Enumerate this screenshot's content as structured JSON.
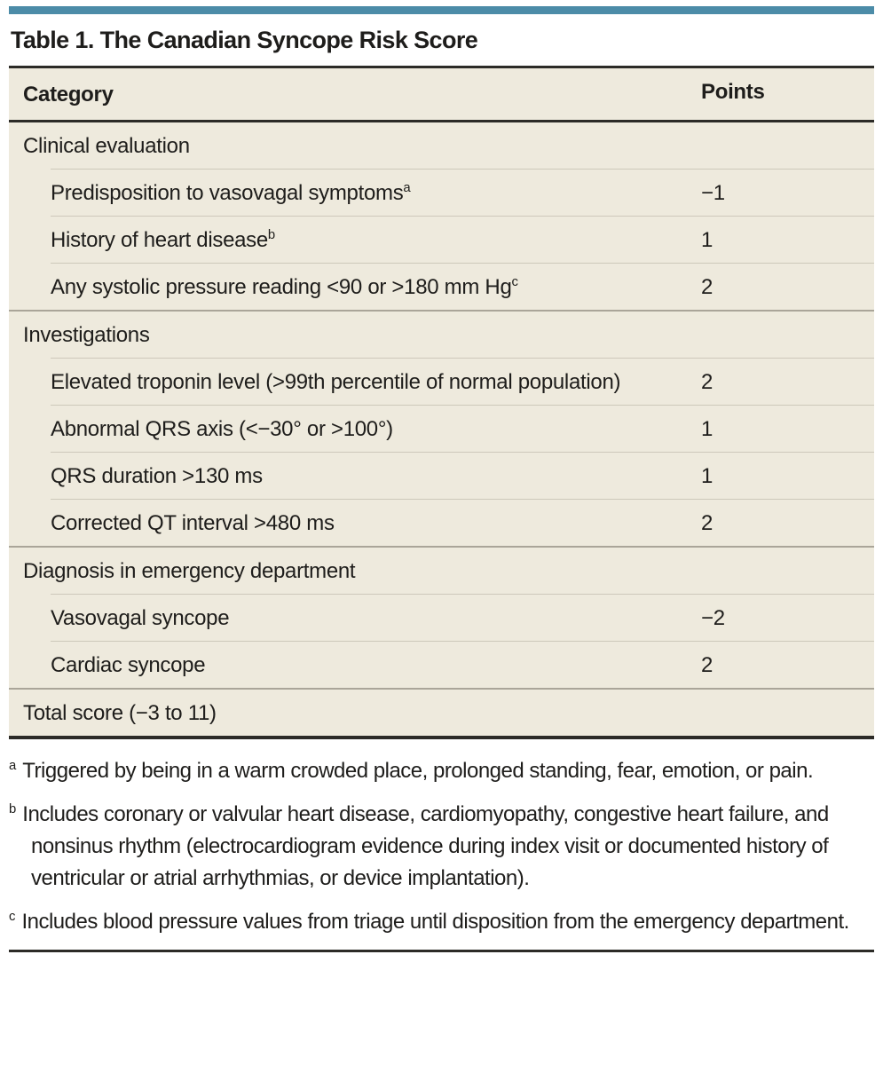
{
  "accent_color": "#4c8ca8",
  "table": {
    "title": "Table 1. The Canadian Syncope Risk Score",
    "columns": {
      "category": "Category",
      "points": "Points"
    },
    "sections": [
      {
        "header": "Clinical evaluation",
        "rows": [
          {
            "label": "Predisposition to vasovagal symptoms",
            "sup": "a",
            "points": "−1"
          },
          {
            "label": "History of heart disease",
            "sup": "b",
            "points": "1"
          },
          {
            "label": "Any systolic pressure reading <90 or >180 mm Hg",
            "sup": "c",
            "points": "2"
          }
        ]
      },
      {
        "header": "Investigations",
        "rows": [
          {
            "label": "Elevated troponin level (>99th percentile of normal population)",
            "sup": "",
            "points": "2"
          },
          {
            "label": "Abnormal QRS axis (<−30° or >100°)",
            "sup": "",
            "points": "1"
          },
          {
            "label": "QRS duration >130 ms",
            "sup": "",
            "points": "1"
          },
          {
            "label": "Corrected QT interval >480 ms",
            "sup": "",
            "points": "2"
          }
        ]
      },
      {
        "header": "Diagnosis in emergency department",
        "rows": [
          {
            "label": "Vasovagal syncope",
            "sup": "",
            "points": "−2"
          },
          {
            "label": "Cardiac syncope",
            "sup": "",
            "points": "2"
          }
        ]
      },
      {
        "header": "Total score (−3 to 11)",
        "rows": []
      }
    ]
  },
  "footnotes": [
    {
      "marker": "a",
      "text": "Triggered by being in a warm crowded place, prolonged standing, fear, emotion, or pain."
    },
    {
      "marker": "b",
      "text": "Includes coronary or valvular heart disease, cardiomyopathy, congestive heart failure, and nonsinus rhythm (electrocardiogram evidence during index visit or documented history of ventricular or atrial arrhythmias, or device implantation)."
    },
    {
      "marker": "c",
      "text": "Includes blood pressure values from triage until disposition from the emergency department."
    }
  ]
}
